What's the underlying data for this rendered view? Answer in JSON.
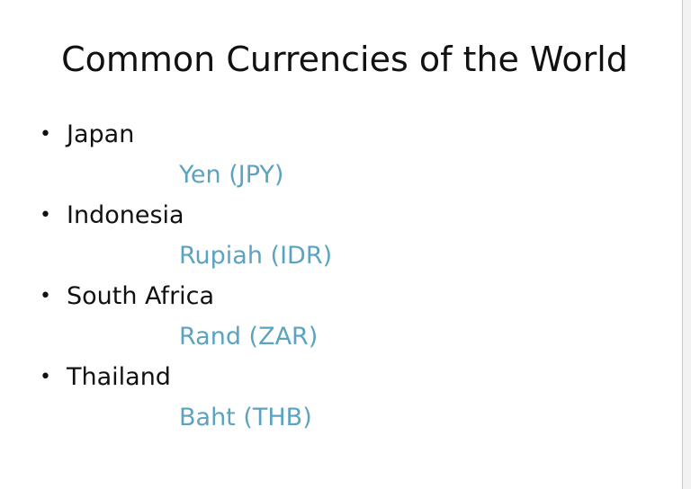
{
  "slide": {
    "title": "Common Currencies of the World",
    "accent_color": "#5ba3c0",
    "items": [
      {
        "country": "Japan",
        "currency": "Yen (JPY)"
      },
      {
        "country": "Indonesia",
        "currency": "Rupiah (IDR)"
      },
      {
        "country": "South Africa",
        "currency": "Rand (ZAR)"
      },
      {
        "country": "Thailand",
        "currency": "Baht (THB)"
      }
    ]
  }
}
